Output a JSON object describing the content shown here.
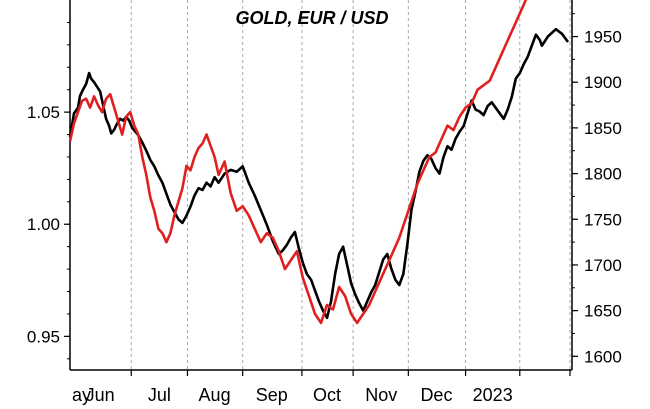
{
  "chart_data": {
    "type": "line",
    "title": "GOLD, EUR / USD",
    "xlabel": "",
    "ylabel_left": "",
    "ylabel_right": "",
    "x_categories": [
      "ay",
      "Jun",
      "Jul",
      "Aug",
      "Sep",
      "Oct",
      "Nov",
      "Dec",
      "2023"
    ],
    "left_axis": {
      "ticks": [
        "0.95",
        "1.00",
        "1.05"
      ],
      "tick_values": [
        0.95,
        1.0,
        1.05
      ],
      "range": [
        0.935,
        1.1
      ]
    },
    "right_axis": {
      "ticks": [
        "1600",
        "1650",
        "1700",
        "1750",
        "1800",
        "1850",
        "1900",
        "1950"
      ],
      "tick_values": [
        1600,
        1650,
        1700,
        1750,
        1800,
        1850,
        1900,
        1950
      ],
      "range": [
        1585,
        1990
      ]
    },
    "grid": {
      "vertical": true,
      "horizontal": false
    },
    "series": [
      {
        "axis": "right",
        "color": "#000000",
        "points": [
          [
            0.0,
            1840
          ],
          [
            0.4,
            1866
          ],
          [
            0.8,
            1872
          ],
          [
            1.0,
            1885
          ],
          [
            1.3,
            1892
          ],
          [
            1.6,
            1898
          ],
          [
            1.9,
            1910
          ],
          [
            2.1,
            1904
          ],
          [
            2.4,
            1900
          ],
          [
            2.7,
            1895
          ],
          [
            3.0,
            1890
          ],
          [
            3.2,
            1880
          ],
          [
            3.4,
            1870
          ],
          [
            3.6,
            1860
          ],
          [
            3.9,
            1852
          ],
          [
            4.1,
            1844
          ],
          [
            4.4,
            1848
          ],
          [
            4.7,
            1855
          ],
          [
            5.0,
            1860
          ],
          [
            5.3,
            1858
          ],
          [
            5.6,
            1862
          ],
          [
            5.9,
            1858
          ],
          [
            6.2,
            1850
          ],
          [
            6.5,
            1846
          ],
          [
            6.8,
            1842
          ],
          [
            7.2,
            1834
          ],
          [
            7.6,
            1825
          ],
          [
            8.0,
            1815
          ],
          [
            8.4,
            1808
          ],
          [
            8.8,
            1798
          ],
          [
            9.2,
            1790
          ],
          [
            9.6,
            1778
          ],
          [
            10.0,
            1766
          ],
          [
            10.4,
            1758
          ],
          [
            10.8,
            1750
          ],
          [
            11.2,
            1746
          ],
          [
            11.6,
            1754
          ],
          [
            12.0,
            1764
          ],
          [
            12.4,
            1776
          ],
          [
            12.8,
            1784
          ],
          [
            13.2,
            1782
          ],
          [
            13.6,
            1790
          ],
          [
            14.0,
            1786
          ],
          [
            14.4,
            1796
          ],
          [
            14.8,
            1790
          ],
          [
            15.4,
            1800
          ],
          [
            16.0,
            1804
          ],
          [
            16.6,
            1802
          ],
          [
            17.2,
            1808
          ],
          [
            17.8,
            1790
          ],
          [
            18.4,
            1776
          ],
          [
            19.0,
            1760
          ],
          [
            19.6,
            1744
          ],
          [
            20.2,
            1726
          ],
          [
            20.8,
            1712
          ],
          [
            21.2,
            1716
          ],
          [
            21.6,
            1722
          ],
          [
            22.0,
            1730
          ],
          [
            22.4,
            1736
          ],
          [
            22.8,
            1718
          ],
          [
            23.2,
            1702
          ],
          [
            23.6,
            1690
          ],
          [
            24.0,
            1684
          ],
          [
            24.4,
            1672
          ],
          [
            24.8,
            1660
          ],
          [
            25.2,
            1650
          ],
          [
            25.6,
            1642
          ],
          [
            26.0,
            1660
          ],
          [
            26.4,
            1690
          ],
          [
            26.8,
            1712
          ],
          [
            27.2,
            1720
          ],
          [
            27.6,
            1700
          ],
          [
            28.0,
            1680
          ],
          [
            28.4,
            1668
          ],
          [
            28.8,
            1658
          ],
          [
            29.2,
            1650
          ],
          [
            29.6,
            1660
          ],
          [
            30.0,
            1670
          ],
          [
            30.4,
            1678
          ],
          [
            30.8,
            1692
          ],
          [
            31.2,
            1706
          ],
          [
            31.6,
            1712
          ],
          [
            32.0,
            1696
          ],
          [
            32.4,
            1684
          ],
          [
            32.8,
            1678
          ],
          [
            33.2,
            1690
          ],
          [
            33.6,
            1722
          ],
          [
            34.0,
            1760
          ],
          [
            34.4,
            1780
          ],
          [
            34.8,
            1802
          ],
          [
            35.2,
            1814
          ],
          [
            35.6,
            1820
          ],
          [
            36.0,
            1816
          ],
          [
            36.4,
            1806
          ],
          [
            36.8,
            1800
          ],
          [
            37.2,
            1818
          ],
          [
            37.6,
            1830
          ],
          [
            38.0,
            1826
          ],
          [
            38.4,
            1838
          ],
          [
            38.8,
            1846
          ],
          [
            39.2,
            1852
          ],
          [
            39.6,
            1866
          ],
          [
            40.0,
            1880
          ],
          [
            40.4,
            1870
          ],
          [
            40.8,
            1868
          ],
          [
            41.2,
            1864
          ],
          [
            41.6,
            1874
          ],
          [
            42.0,
            1878
          ],
          [
            42.4,
            1872
          ],
          [
            42.8,
            1866
          ],
          [
            43.2,
            1860
          ],
          [
            43.6,
            1870
          ],
          [
            44.0,
            1884
          ],
          [
            44.4,
            1904
          ],
          [
            44.8,
            1910
          ],
          [
            45.2,
            1920
          ],
          [
            45.6,
            1928
          ],
          [
            46.0,
            1940
          ],
          [
            46.4,
            1952
          ],
          [
            46.8,
            1946
          ],
          [
            47.0,
            1940
          ],
          [
            47.6,
            1950
          ],
          [
            48.4,
            1958
          ],
          [
            49.0,
            1953
          ],
          [
            49.6,
            1944
          ]
        ]
      },
      {
        "axis": "left",
        "color": "#e02020",
        "points": [
          [
            0.0,
            1.037
          ],
          [
            0.4,
            1.045
          ],
          [
            0.8,
            1.05
          ],
          [
            1.2,
            1.055
          ],
          [
            1.6,
            1.056
          ],
          [
            2.0,
            1.052
          ],
          [
            2.4,
            1.057
          ],
          [
            2.8,
            1.053
          ],
          [
            3.2,
            1.05
          ],
          [
            3.6,
            1.056
          ],
          [
            4.0,
            1.058
          ],
          [
            4.4,
            1.052
          ],
          [
            4.8,
            1.046
          ],
          [
            5.2,
            1.04
          ],
          [
            5.6,
            1.048
          ],
          [
            6.0,
            1.05
          ],
          [
            6.4,
            1.044
          ],
          [
            6.8,
            1.04
          ],
          [
            7.2,
            1.03
          ],
          [
            7.6,
            1.022
          ],
          [
            8.0,
            1.012
          ],
          [
            8.4,
            1.006
          ],
          [
            8.8,
            0.998
          ],
          [
            9.2,
            0.996
          ],
          [
            9.6,
            0.992
          ],
          [
            10.0,
            0.996
          ],
          [
            10.4,
            1.004
          ],
          [
            10.8,
            1.01
          ],
          [
            11.2,
            1.016
          ],
          [
            11.6,
            1.026
          ],
          [
            12.0,
            1.024
          ],
          [
            12.4,
            1.03
          ],
          [
            12.8,
            1.034
          ],
          [
            13.2,
            1.036
          ],
          [
            13.6,
            1.04
          ],
          [
            14.0,
            1.035
          ],
          [
            14.4,
            1.03
          ],
          [
            14.8,
            1.022
          ],
          [
            15.4,
            1.028
          ],
          [
            16.0,
            1.014
          ],
          [
            16.6,
            1.006
          ],
          [
            17.2,
            1.008
          ],
          [
            17.8,
            1.004
          ],
          [
            18.4,
            0.998
          ],
          [
            19.0,
            0.992
          ],
          [
            19.6,
            0.996
          ],
          [
            20.2,
            0.994
          ],
          [
            20.8,
            0.988
          ],
          [
            21.4,
            0.98
          ],
          [
            22.0,
            0.984
          ],
          [
            22.6,
            0.988
          ],
          [
            23.2,
            0.976
          ],
          [
            23.8,
            0.968
          ],
          [
            24.4,
            0.96
          ],
          [
            25.0,
            0.956
          ],
          [
            25.6,
            0.964
          ],
          [
            26.2,
            0.962
          ],
          [
            26.8,
            0.972
          ],
          [
            27.4,
            0.968
          ],
          [
            28.0,
            0.96
          ],
          [
            28.6,
            0.956
          ],
          [
            29.2,
            0.96
          ],
          [
            29.8,
            0.964
          ],
          [
            30.4,
            0.97
          ],
          [
            31.0,
            0.976
          ],
          [
            31.6,
            0.982
          ],
          [
            32.2,
            0.988
          ],
          [
            32.8,
            0.994
          ],
          [
            33.4,
            1.002
          ],
          [
            34.0,
            1.01
          ],
          [
            34.6,
            1.018
          ],
          [
            35.2,
            1.024
          ],
          [
            35.8,
            1.03
          ],
          [
            36.4,
            1.032
          ],
          [
            37.0,
            1.038
          ],
          [
            37.6,
            1.044
          ],
          [
            38.2,
            1.042
          ],
          [
            38.8,
            1.048
          ],
          [
            39.4,
            1.052
          ],
          [
            40.0,
            1.054
          ],
          [
            40.6,
            1.06
          ],
          [
            41.2,
            1.062
          ],
          [
            41.8,
            1.064
          ],
          [
            42.4,
            1.07
          ],
          [
            43.0,
            1.076
          ],
          [
            43.6,
            1.082
          ],
          [
            44.2,
            1.088
          ],
          [
            44.8,
            1.094
          ],
          [
            45.4,
            1.1
          ],
          [
            46.0,
            1.108
          ],
          [
            46.6,
            1.114
          ],
          [
            47.2,
            1.12
          ],
          [
            47.8,
            1.124
          ],
          [
            48.4,
            1.126
          ],
          [
            49.0,
            1.122
          ],
          [
            49.6,
            1.118
          ]
        ]
      }
    ]
  }
}
